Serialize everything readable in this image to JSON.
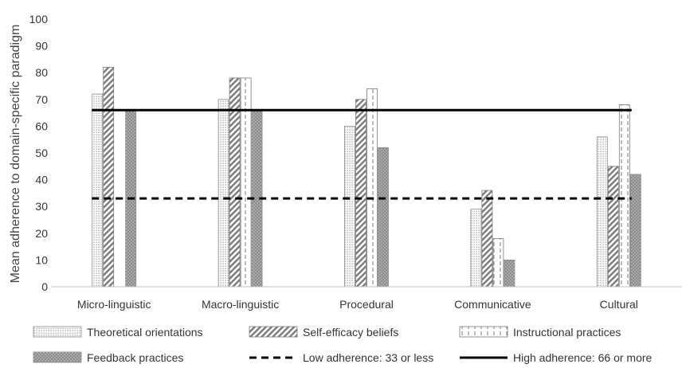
{
  "chart_data": {
    "type": "bar",
    "categories": [
      "Micro-linguistic",
      "Macro-linguistic",
      "Procedural",
      "Communicative",
      "Cultural"
    ],
    "series": [
      {
        "name": "Theoretical orientations",
        "pattern": "dots",
        "values": [
          72,
          70,
          60,
          29,
          56
        ]
      },
      {
        "name": "Self-efficacy beliefs",
        "pattern": "diagonal",
        "values": [
          82,
          78,
          70,
          36,
          45
        ]
      },
      {
        "name": "Instructional practices",
        "pattern": "dashed-vertical",
        "values": [
          null,
          78,
          74,
          18,
          68
        ]
      },
      {
        "name": "Feedback practices",
        "pattern": "dark-dots",
        "values": [
          66,
          66,
          52,
          10,
          42
        ]
      }
    ],
    "reference_lines": [
      {
        "name": "Low adherence: 33 or less",
        "value": 33,
        "style": "dashed"
      },
      {
        "name": "High adherence: 66 or more",
        "value": 66,
        "style": "solid"
      }
    ],
    "ylabel": "Mean adherence to domain-specific paradigm",
    "xlabel": "",
    "ylim": [
      0,
      100
    ],
    "yticks": [
      0,
      10,
      20,
      30,
      40,
      50,
      60,
      70,
      80,
      90,
      100
    ],
    "grid": false,
    "legend_position": "bottom"
  }
}
